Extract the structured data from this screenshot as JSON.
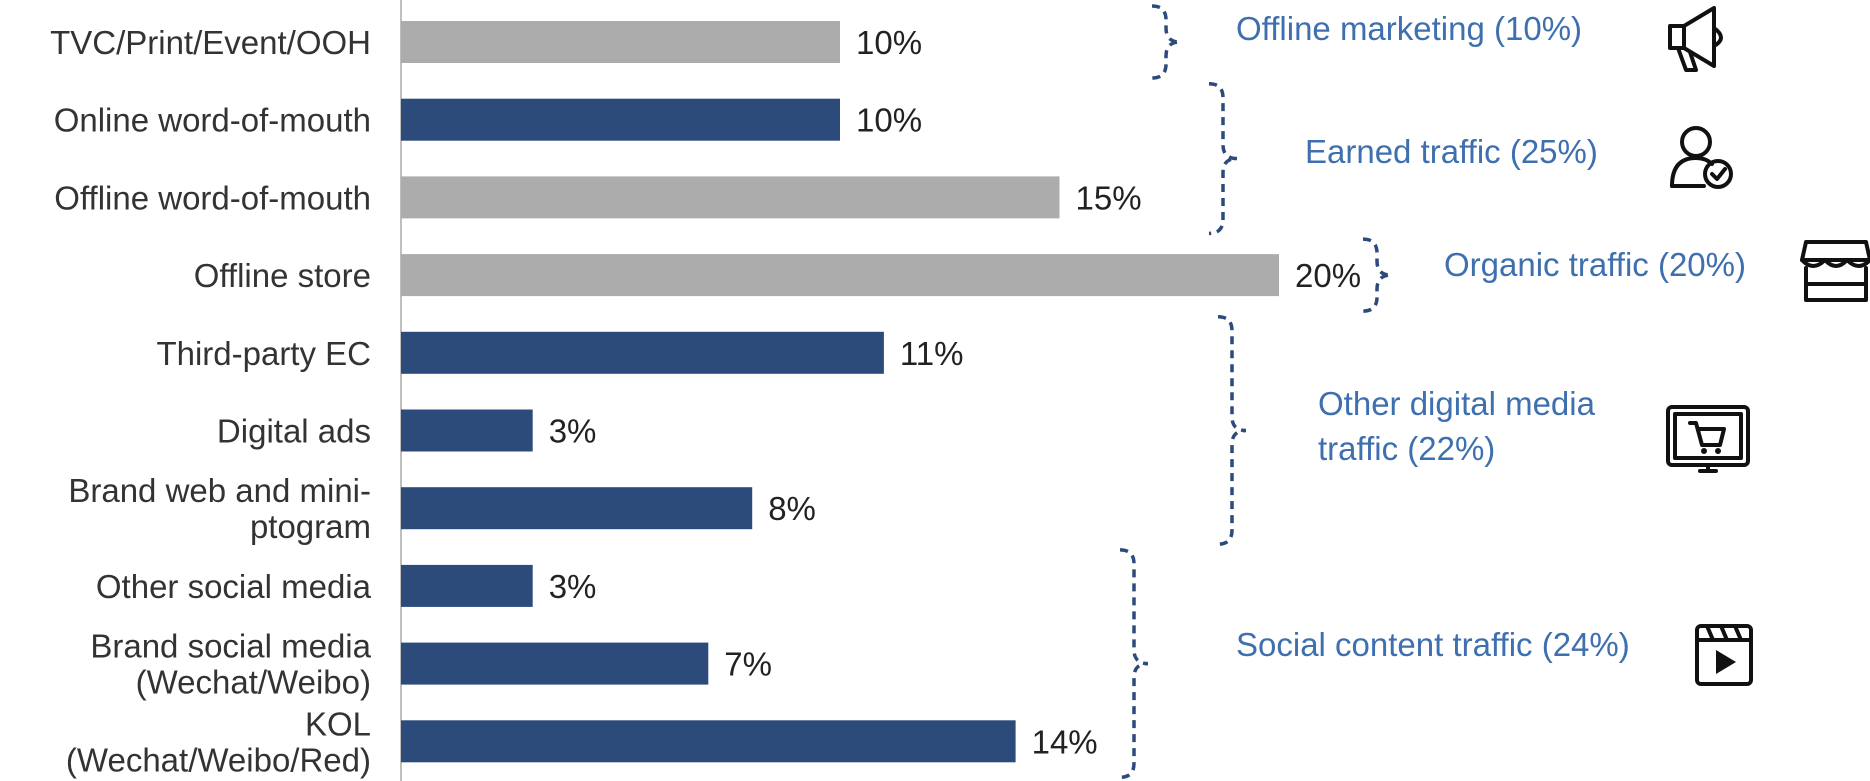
{
  "colors": {
    "dark_bar": "#2c4a7a",
    "grey_bar": "#acacac",
    "group_text": "#3e6fae",
    "bracket": "#2c4a7a",
    "axis": "#bfbfbf"
  },
  "chart_data": {
    "type": "bar",
    "orientation": "horizontal",
    "title": "",
    "xlabel": "",
    "ylabel": "",
    "xlim": [
      0,
      20
    ],
    "grid": false,
    "value_format": "percent",
    "categories": [
      "TVC/Print/Event/OOH",
      "Online word-of-mouth",
      "Offline word-of-mouth",
      "Offline store",
      "Third-party EC",
      "Digital ads",
      "Brand web and mini-ptogram",
      "Other social media",
      "Brand social media (Wechat/Weibo)",
      "KOL (Wechat/Weibo/Red)"
    ],
    "category_lines": [
      [
        "TVC/Print/Event/OOH"
      ],
      [
        "Online word-of-mouth"
      ],
      [
        "Offline word-of-mouth"
      ],
      [
        "Offline store"
      ],
      [
        "Third-party EC"
      ],
      [
        "Digital ads"
      ],
      [
        "Brand web and mini-",
        "ptogram"
      ],
      [
        "Other social media"
      ],
      [
        "Brand social media",
        "(Wechat/Weibo)"
      ],
      [
        "KOL",
        "(Wechat/Weibo/Red)"
      ]
    ],
    "values": [
      10,
      10,
      15,
      20,
      11,
      3,
      8,
      3,
      7,
      14
    ],
    "value_labels": [
      "10%",
      "10%",
      "15%",
      "20%",
      "11%",
      "3%",
      "8%",
      "3%",
      "7%",
      "14%"
    ],
    "bar_color_keys": [
      "grey",
      "dark",
      "grey",
      "grey",
      "dark",
      "dark",
      "dark",
      "dark",
      "dark",
      "dark"
    ],
    "groups": [
      {
        "lines": [
          "Offline marketing (10%)"
        ],
        "share": 10,
        "first": 0,
        "last": 0,
        "icon": "megaphone-icon"
      },
      {
        "lines": [
          "Earned traffic (25%)"
        ],
        "share": 25,
        "first": 1,
        "last": 2,
        "icon": "user-check-icon"
      },
      {
        "lines": [
          "Organic traffic (20%)"
        ],
        "share": 20,
        "first": 3,
        "last": 3,
        "icon": "storefront-icon"
      },
      {
        "lines": [
          "Other digital media",
          "traffic (22%)"
        ],
        "share": 22,
        "first": 4,
        "last": 6,
        "icon": "monitor-cart-icon"
      },
      {
        "lines": [
          "Social content traffic (24%)"
        ],
        "share": 24,
        "first": 7,
        "last": 9,
        "icon": "video-play-icon"
      }
    ]
  }
}
